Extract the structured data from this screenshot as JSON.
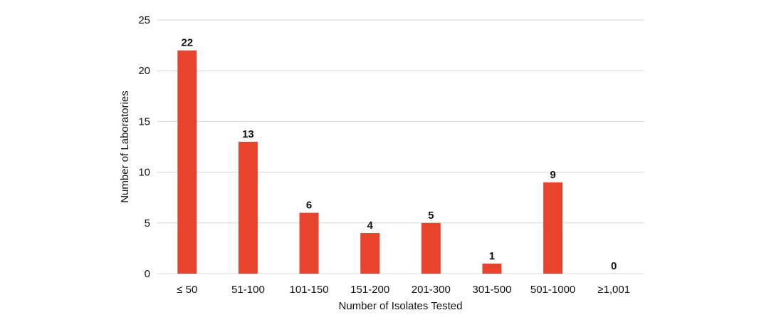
{
  "chart_data": {
    "type": "bar",
    "categories": [
      "≤ 50",
      "51-100",
      "101-150",
      "151-200",
      "201-300",
      "301-500",
      "501-1000",
      "≥1,001"
    ],
    "values": [
      22,
      13,
      6,
      4,
      5,
      1,
      9,
      0
    ],
    "data_labels": [
      "22",
      "13",
      "6",
      "4",
      "5",
      "1",
      "9",
      "0"
    ],
    "title": "",
    "xlabel": "Number of Isolates Tested",
    "ylabel": "Number of Laboratories",
    "ylim": [
      0,
      25
    ],
    "yticks": [
      "0",
      "5",
      "10",
      "15",
      "20",
      "25"
    ],
    "grid": true,
    "bar_color": "#e8432d",
    "grid_color": "#d9d9d9"
  }
}
